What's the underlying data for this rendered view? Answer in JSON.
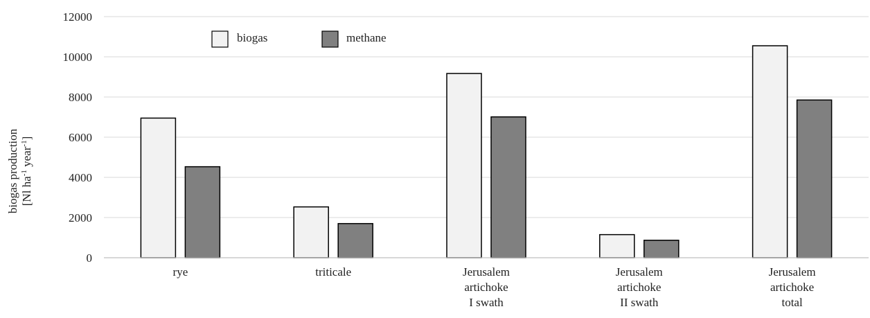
{
  "chart_data": {
    "type": "bar",
    "categories": [
      [
        "rye"
      ],
      [
        "triticale"
      ],
      [
        "Jerusalem",
        "artichoke",
        "I swath"
      ],
      [
        "Jerusalem",
        "artichoke",
        "II swath"
      ],
      [
        "Jerusalem",
        "artichoke",
        "total"
      ]
    ],
    "series": [
      {
        "name": "biogas",
        "color": "#f2f2f2",
        "values": [
          6950,
          2530,
          9170,
          1150,
          10550
        ]
      },
      {
        "name": "methane",
        "color": "#808080",
        "values": [
          4530,
          1700,
          7010,
          870,
          7850
        ]
      }
    ],
    "ylabel_lines": [
      "biogas production",
      "[Nl ha",
      "-1",
      " year",
      "-1",
      "]"
    ],
    "yticks": [
      0,
      2000,
      4000,
      6000,
      8000,
      10000,
      12000
    ],
    "ylim": [
      0,
      12000
    ],
    "grid": true,
    "legend_position": "top-left"
  }
}
